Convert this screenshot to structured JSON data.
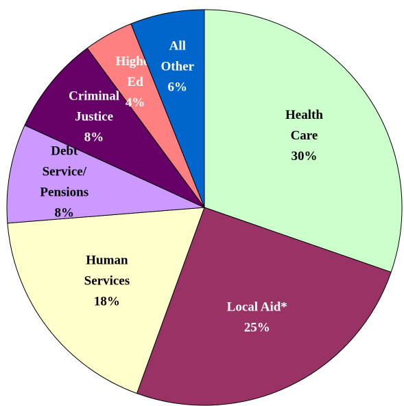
{
  "chart_data": {
    "type": "pie",
    "categories": [
      [
        "Health",
        "Care"
      ],
      [
        "Local Aid*"
      ],
      [
        "Human",
        "Services"
      ],
      [
        "Debt",
        "Service/",
        "Pensions"
      ],
      [
        "Criminal",
        "Justice"
      ],
      [
        "Higher",
        "Ed"
      ],
      [
        "All",
        "Other"
      ]
    ],
    "values": [
      30,
      25,
      18,
      8,
      8,
      4,
      6
    ],
    "value_labels": [
      "30%",
      "25%",
      "18%",
      "8%",
      "8%",
      "4%",
      "6%"
    ],
    "colors": [
      "#ccffcc",
      "#993366",
      "#ffffcc",
      "#cc99ff",
      "#660066",
      "#ff8080",
      "#0066cc"
    ],
    "label_colors": [
      "#000000",
      "#ffffff",
      "#000000",
      "#000000",
      "#ffffff",
      "#ffffff",
      "#ffffff"
    ]
  }
}
